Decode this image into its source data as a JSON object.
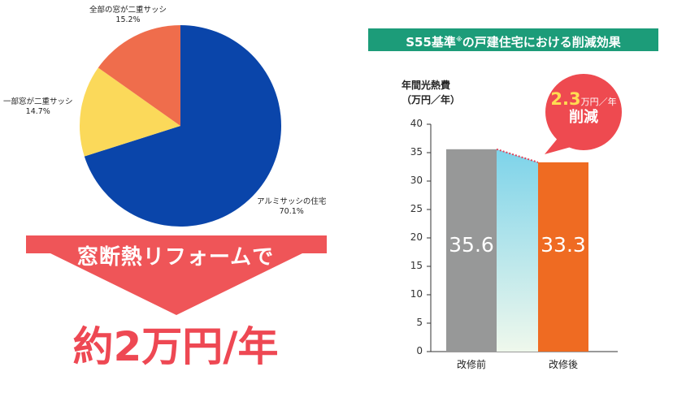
{
  "chart_data": [
    {
      "type": "pie",
      "series": [
        {
          "label": "アルミサッシの住宅",
          "percent_label": "70.1%",
          "value": 70.1,
          "color": "#0a45aa"
        },
        {
          "label": "一部窓が二重サッシ",
          "percent_label": "14.7%",
          "value": 14.7,
          "color": "#fbd95a"
        },
        {
          "label": "全部の窓が二重サッシ",
          "percent_label": "15.2%",
          "value": 15.2,
          "color": "#ef6d4c"
        }
      ]
    },
    {
      "type": "bar",
      "title": "S55基準",
      "title_mark": "※",
      "title_suffix": "の戸建住宅における削減効果",
      "ylabel_line1": "年間光熱費",
      "ylabel_line2": "（万円／年）",
      "categories": [
        "改修前",
        "改修後"
      ],
      "values": [
        35.6,
        33.3
      ],
      "value_labels": [
        "35.6",
        "33.3"
      ],
      "bar_colors": [
        "#979898",
        "#ef6b22"
      ],
      "ylim": [
        0,
        40
      ],
      "yticks": [
        "0",
        "5",
        "10",
        "15",
        "20",
        "25",
        "30",
        "35",
        "40"
      ],
      "grid": false,
      "annotation": {
        "amount": "2.3",
        "unit": "万円／年",
        "text": "削減"
      }
    }
  ],
  "banner": {
    "text": "窓断熱リフォームで"
  },
  "headline": {
    "text": "約2万円/年"
  },
  "colors": {
    "banner": "#ef5558",
    "headline": "#ee4853",
    "header": "#1c9c79",
    "bubble": "#ee4a50"
  }
}
